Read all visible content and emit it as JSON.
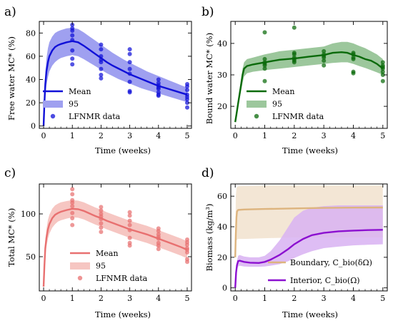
{
  "chart_data": [
    {
      "panel": "a)",
      "type": "line",
      "xlabel": "Time (weeks)",
      "ylabel": "Free water MC* (%)",
      "xlim": [
        -0.15,
        5.15
      ],
      "ylim": [
        -2,
        90
      ],
      "xticks": [
        0,
        1,
        2,
        3,
        4,
        5
      ],
      "yticks": [
        0,
        20,
        40,
        60,
        80
      ],
      "color": "#1010d8",
      "band_color": "#9fa0f0",
      "legend": {
        "position": "bottom-left",
        "entries": [
          "Mean",
          "95",
          "LFNMR data"
        ]
      },
      "mean": {
        "x": [
          0,
          0.03,
          0.06,
          0.1,
          0.15,
          0.2,
          0.3,
          0.4,
          0.5,
          0.6,
          0.8,
          1.0,
          1.2,
          1.4,
          1.6,
          1.8,
          2.0,
          2.2,
          2.4,
          2.6,
          2.8,
          3.0,
          3.2,
          3.4,
          3.6,
          3.8,
          4.0,
          4.2,
          4.4,
          4.6,
          4.8,
          5.0
        ],
        "y": [
          0,
          20,
          36,
          47,
          55,
          60,
          65,
          68,
          69.5,
          70.5,
          72,
          73,
          72,
          69,
          65.5,
          62,
          58.5,
          55,
          52,
          49.5,
          47,
          44.5,
          42.5,
          40.5,
          38.5,
          36.5,
          34.5,
          33,
          31.5,
          30,
          28.5,
          27
        ]
      },
      "band": {
        "x": [
          0,
          0.03,
          0.06,
          0.1,
          0.15,
          0.2,
          0.3,
          0.4,
          0.5,
          0.6,
          0.8,
          1.0,
          1.2,
          1.4,
          1.6,
          1.8,
          2.0,
          2.2,
          2.4,
          2.6,
          2.8,
          3.0,
          3.2,
          3.4,
          3.6,
          3.8,
          4.0,
          4.2,
          4.4,
          4.6,
          4.8,
          5.0
        ],
        "lower": [
          0,
          14,
          26,
          35,
          42,
          47,
          52,
          55,
          57,
          58.5,
          60,
          61,
          60,
          57.5,
          54.5,
          51.5,
          48.5,
          45.5,
          43,
          40.5,
          38.5,
          36.5,
          34.5,
          32.5,
          31,
          29.5,
          28,
          26.5,
          25,
          23.5,
          22,
          20.5
        ],
        "upper": [
          0,
          26,
          46,
          58,
          67,
          72,
          77,
          80,
          81.5,
          82.5,
          84,
          84.5,
          83.5,
          80.5,
          77,
          73.5,
          70,
          66.5,
          63,
          60,
          57,
          54.5,
          52,
          49.5,
          47,
          45,
          43,
          41,
          39,
          37,
          35,
          33
        ]
      },
      "scatter": {
        "x": [
          1,
          1,
          1,
          1,
          1,
          1,
          1,
          1,
          2,
          2,
          2,
          2,
          2,
          2,
          2,
          2,
          3,
          3,
          3,
          3,
          3,
          3,
          3,
          3,
          4,
          4,
          4,
          4,
          4,
          4,
          4,
          4,
          5,
          5,
          5,
          5,
          5,
          5,
          5,
          5
        ],
        "y": [
          87,
          84,
          82,
          78,
          74,
          65,
          58,
          53,
          70,
          66,
          60,
          57,
          55,
          49,
          44,
          41,
          66,
          62,
          55,
          49,
          45,
          38,
          30,
          29,
          40,
          37,
          35,
          33,
          32,
          29,
          27,
          26,
          36,
          34,
          31,
          27,
          25,
          23,
          20,
          16
        ]
      }
    },
    {
      "panel": "b)",
      "type": "line",
      "xlabel": "Time (weeks)",
      "ylabel": "Bound water MC* (%)",
      "xlim": [
        -0.15,
        5.15
      ],
      "ylim": [
        13,
        47
      ],
      "xticks": [
        0,
        1,
        2,
        3,
        4,
        5
      ],
      "yticks": [
        20,
        30,
        40
      ],
      "color": "#0a6a0a",
      "band_color": "#9cc79c",
      "legend": {
        "position": "bottom-right",
        "entries": [
          "Mean",
          "95",
          "LFNMR data"
        ]
      },
      "mean": {
        "x": [
          0,
          0.05,
          0.1,
          0.15,
          0.2,
          0.25,
          0.3,
          0.4,
          0.6,
          1.0,
          1.5,
          2.0,
          2.5,
          3.0,
          3.3,
          3.6,
          3.8,
          4.0,
          4.2,
          4.4,
          4.6,
          4.8,
          5.0
        ],
        "y": [
          15,
          18,
          21,
          24,
          27,
          30,
          32,
          32.8,
          33.3,
          34,
          34.8,
          35.2,
          35.8,
          36.3,
          37,
          37.2,
          37,
          36.3,
          35.8,
          35,
          34.5,
          33.5,
          32
        ]
      },
      "band": {
        "x": [
          0,
          0.05,
          0.1,
          0.15,
          0.2,
          0.25,
          0.3,
          0.4,
          0.6,
          1.0,
          1.5,
          2.0,
          2.5,
          3.0,
          3.3,
          3.6,
          3.8,
          4.0,
          4.2,
          4.4,
          4.6,
          4.8,
          5.0
        ],
        "lower": [
          15,
          17.5,
          20,
          22.5,
          25,
          27.5,
          29.5,
          30.5,
          31,
          31.5,
          32,
          32.5,
          33,
          33.5,
          33.8,
          34,
          34,
          33.5,
          32.8,
          32.2,
          31.5,
          30.8,
          30
        ],
        "upper": [
          15,
          18.5,
          22,
          25.5,
          29,
          32,
          34,
          35,
          35.5,
          36.5,
          37.5,
          38,
          38.5,
          39,
          40,
          40.5,
          40.5,
          40,
          39.2,
          38.5,
          37.5,
          36.5,
          35
        ]
      },
      "scatter": {
        "x": [
          1,
          1,
          1,
          1,
          1,
          1,
          1,
          2,
          2,
          2,
          2,
          2,
          2,
          2,
          3,
          3,
          3,
          3,
          3,
          3,
          4,
          4,
          4,
          4,
          4,
          4,
          5,
          5,
          5,
          5,
          5,
          5,
          5
        ],
        "y": [
          43.5,
          35,
          34,
          33.5,
          33,
          32,
          28,
          45,
          37,
          36.5,
          35.5,
          35,
          34.5,
          34,
          37.5,
          36.5,
          36,
          35.5,
          34.5,
          33,
          37,
          36.5,
          35.5,
          35,
          31,
          30.5,
          34,
          33,
          32.5,
          32,
          31,
          30,
          28
        ]
      }
    },
    {
      "panel": "c)",
      "type": "line",
      "xlabel": "Time (weeks)",
      "ylabel": "Total MC* (%)",
      "xlim": [
        -0.15,
        5.15
      ],
      "ylim": [
        10,
        135
      ],
      "xticks": [
        0,
        1,
        2,
        3,
        4,
        5
      ],
      "yticks": [
        50,
        100
      ],
      "color": "#e87070",
      "band_color": "#f6c6c2",
      "legend": {
        "position": "bottom-center",
        "entries": [
          "Mean",
          "95",
          "LFNMR data"
        ]
      },
      "mean": {
        "x": [
          0,
          0.03,
          0.06,
          0.1,
          0.15,
          0.2,
          0.3,
          0.4,
          0.5,
          0.6,
          0.8,
          1.0,
          1.2,
          1.4,
          1.6,
          1.8,
          2.0,
          2.2,
          2.4,
          2.6,
          2.8,
          3.0,
          3.2,
          3.4,
          3.6,
          3.8,
          4.0,
          4.2,
          4.4,
          4.6,
          4.8,
          5.0
        ],
        "y": [
          15,
          40,
          60,
          72,
          82,
          88,
          95,
          99,
          101,
          102.5,
          104.5,
          106,
          105.5,
          103.5,
          100.5,
          97.5,
          95,
          92,
          89.5,
          87,
          84.5,
          82,
          80,
          78,
          76,
          73.5,
          71,
          68.5,
          66,
          63.5,
          61,
          58
        ]
      },
      "band": {
        "x": [
          0,
          0.03,
          0.06,
          0.1,
          0.15,
          0.2,
          0.3,
          0.4,
          0.5,
          0.6,
          0.8,
          1.0,
          1.2,
          1.4,
          1.6,
          1.8,
          2.0,
          2.2,
          2.4,
          2.6,
          2.8,
          3.0,
          3.2,
          3.4,
          3.6,
          3.8,
          4.0,
          4.2,
          4.4,
          4.6,
          4.8,
          5.0
        ],
        "lower": [
          15,
          34,
          51,
          62,
          71,
          77,
          84,
          88,
          91,
          92.5,
          94.5,
          96,
          95.5,
          93.5,
          90.5,
          87.5,
          85,
          82,
          79.5,
          77,
          74.5,
          72,
          70,
          68,
          66,
          63.5,
          61,
          58.5,
          56,
          53.5,
          51,
          48
        ]
      },
      "band_upper": [
        15,
        46,
        69,
        82,
        93,
        99,
        106,
        110,
        112,
        113.5,
        115,
        116,
        115.5,
        113.5,
        110.5,
        107.5,
        105,
        102,
        99.5,
        97,
        94.5,
        92,
        90,
        88,
        86,
        83.5,
        81,
        78.5,
        76,
        73.5,
        71,
        68
      ],
      "scatter": {
        "x": [
          1,
          1,
          1,
          1,
          1,
          1,
          1,
          1,
          2,
          2,
          2,
          2,
          2,
          2,
          2,
          2,
          3,
          3,
          3,
          3,
          3,
          3,
          3,
          3,
          4,
          4,
          4,
          4,
          4,
          4,
          4,
          4,
          5,
          5,
          5,
          5,
          5,
          5,
          5,
          5
        ],
        "y": [
          129,
          123,
          116,
          113,
          109,
          101,
          95,
          87,
          108,
          104,
          100,
          97,
          94,
          89,
          84,
          79,
          102,
          98,
          92,
          87,
          81,
          72,
          66,
          63,
          83,
          80,
          76,
          73,
          71,
          66,
          63,
          59,
          70,
          67,
          64,
          60,
          58,
          55,
          47,
          44
        ]
      }
    },
    {
      "panel": "d)",
      "type": "line",
      "xlabel": "Time (weeks)",
      "ylabel": "Biomass (kg/m³)",
      "xlim": [
        -0.15,
        5.15
      ],
      "ylim": [
        -2,
        68
      ],
      "xticks": [
        0,
        1,
        2,
        3,
        4,
        5
      ],
      "yticks": [
        0,
        20,
        40,
        60
      ],
      "legend": {
        "position": "bottom-right",
        "entries": [
          "Boundary, C_bio(δΩ)",
          "Interior, C_bio(Ω)"
        ]
      },
      "series": [
        {
          "name": "Boundary, C_bio(δΩ)",
          "color": "#ddb47e",
          "band_color": "#f3e6d5",
          "x": [
            0,
            0.02,
            0.04,
            0.06,
            0.1,
            0.3,
            1.0,
            2.0,
            3.0,
            4.0,
            5.0
          ],
          "y": [
            20,
            35,
            46,
            50,
            51,
            51.3,
            51.6,
            52,
            52.3,
            52.5,
            52.6
          ],
          "lower": [
            20,
            30,
            31,
            31.5,
            32,
            32,
            32.5,
            33,
            33,
            33,
            33
          ],
          "upper": [
            20,
            60,
            65,
            66,
            66.5,
            66.7,
            67,
            67,
            67,
            67,
            67
          ]
        },
        {
          "name": "Interior, C_bio(Ω)",
          "color": "#8c10d0",
          "band_color": "#d8b2f2",
          "x": [
            0,
            0.03,
            0.06,
            0.1,
            0.15,
            0.3,
            0.5,
            0.8,
            1.0,
            1.2,
            1.5,
            1.8,
            2.0,
            2.3,
            2.6,
            3.0,
            3.5,
            4.0,
            4.5,
            5.0
          ],
          "y": [
            0,
            10,
            15,
            17.5,
            17.8,
            17,
            16.5,
            16.3,
            17,
            18.5,
            21.5,
            25.5,
            28.5,
            32,
            34.5,
            36,
            37,
            37.5,
            37.8,
            38
          ],
          "lower": [
            0,
            8,
            12,
            14,
            14.5,
            14,
            13.8,
            13.8,
            14,
            14.5,
            15.5,
            17.5,
            19.5,
            22,
            24,
            26,
            27,
            27.8,
            28.2,
            28.5
          ],
          "upper": [
            0,
            12,
            18,
            21,
            21.5,
            20.5,
            20,
            20,
            21,
            24,
            31,
            40,
            46,
            50.5,
            52.5,
            53.5,
            54,
            54,
            54,
            54
          ]
        }
      ]
    }
  ]
}
